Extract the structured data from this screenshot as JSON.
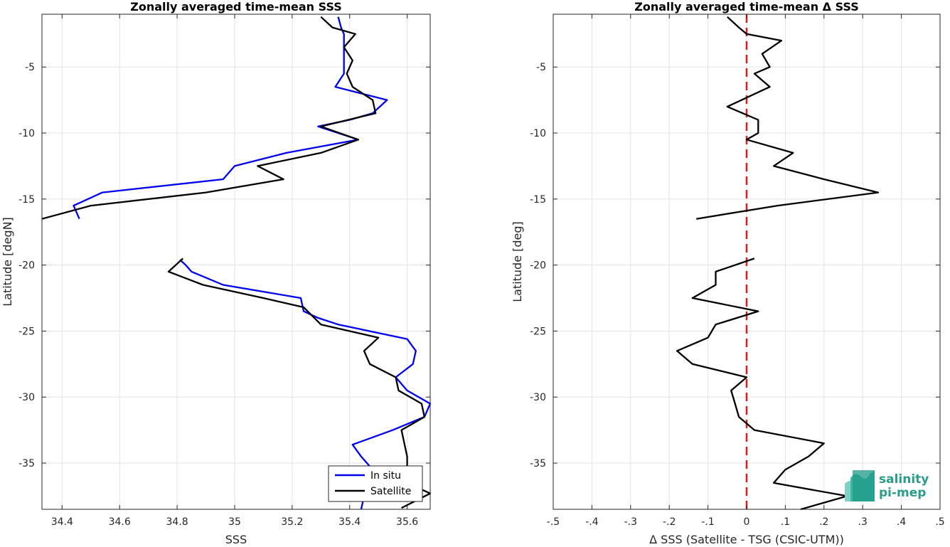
{
  "chart_data": [
    {
      "type": "line",
      "title": "Zonally averaged time-mean SSS",
      "xlabel": "SSS",
      "ylabel": "Latitude [degN]",
      "xlim": [
        34.33,
        35.68
      ],
      "ylim": [
        -38.5,
        -1
      ],
      "xticks": [
        34.4,
        34.6,
        34.8,
        35,
        35.2,
        35.4,
        35.6
      ],
      "yticks": [
        -35,
        -30,
        -25,
        -20,
        -15,
        -10,
        -5
      ],
      "grid": true,
      "legend": "bottom-right",
      "series": [
        {
          "name": "In situ",
          "color": "#0000ee",
          "segments": [
            [
              [
                35.36,
                -1.2
              ],
              [
                35.37,
                -2
              ],
              [
                35.38,
                -2.5
              ],
              [
                35.38,
                -3.5
              ],
              [
                35.38,
                -4.5
              ],
              [
                35.38,
                -5.5
              ],
              [
                35.35,
                -6.5
              ],
              [
                35.53,
                -7.5
              ],
              [
                35.48,
                -8.5
              ],
              [
                35.4,
                -9
              ],
              [
                35.29,
                -9.5
              ],
              [
                35.43,
                -10.5
              ],
              [
                35.18,
                -11.5
              ],
              [
                35.0,
                -12.5
              ],
              [
                34.96,
                -13.5
              ],
              [
                34.54,
                -14.5
              ],
              [
                34.44,
                -15.5
              ],
              [
                34.46,
                -16.5
              ]
            ],
            [
              [
                34.81,
                -19.6
              ],
              [
                34.83,
                -20
              ],
              [
                34.85,
                -20.5
              ],
              [
                34.96,
                -21.5
              ],
              [
                35.23,
                -22.5
              ],
              [
                35.24,
                -23.5
              ],
              [
                35.29,
                -24
              ],
              [
                35.36,
                -24.5
              ],
              [
                35.6,
                -25.6
              ],
              [
                35.63,
                -26.5
              ],
              [
                35.62,
                -27.5
              ],
              [
                35.56,
                -28.5
              ],
              [
                35.6,
                -29.5
              ],
              [
                35.68,
                -30.5
              ],
              [
                35.66,
                -31.5
              ],
              [
                35.55,
                -32.5
              ],
              [
                35.41,
                -33.6
              ],
              [
                35.44,
                -34.5
              ],
              [
                35.48,
                -35.5
              ],
              [
                35.46,
                -36.5
              ],
              [
                35.45,
                -37.5
              ],
              [
                35.44,
                -38.5
              ]
            ]
          ]
        },
        {
          "name": "Satellite",
          "color": "#000000",
          "segments": [
            [
              [
                35.3,
                -1.2
              ],
              [
                35.34,
                -2
              ],
              [
                35.42,
                -2.5
              ],
              [
                35.38,
                -3.5
              ],
              [
                35.41,
                -4.5
              ],
              [
                35.39,
                -5.5
              ],
              [
                35.41,
                -6.5
              ],
              [
                35.48,
                -7.5
              ],
              [
                35.49,
                -8.5
              ],
              [
                35.3,
                -9.5
              ],
              [
                35.43,
                -10.5
              ],
              [
                35.3,
                -11.5
              ],
              [
                35.08,
                -12.5
              ],
              [
                35.17,
                -13.5
              ],
              [
                34.9,
                -14.5
              ],
              [
                34.5,
                -15.5
              ],
              [
                34.33,
                -16.5
              ]
            ],
            [
              [
                34.82,
                -19.5
              ],
              [
                34.77,
                -20.5
              ],
              [
                34.89,
                -21.5
              ],
              [
                35.1,
                -22.5
              ],
              [
                35.24,
                -23.2
              ],
              [
                35.3,
                -24.5
              ],
              [
                35.5,
                -25.5
              ],
              [
                35.45,
                -26.5
              ],
              [
                35.47,
                -27.5
              ],
              [
                35.56,
                -28.5
              ],
              [
                35.57,
                -29.5
              ],
              [
                35.65,
                -30.5
              ],
              [
                35.66,
                -31.5
              ],
              [
                35.58,
                -32.5
              ],
              [
                35.59,
                -33.5
              ],
              [
                35.6,
                -34.5
              ],
              [
                35.6,
                -35.5
              ],
              [
                35.6,
                -36.5
              ],
              [
                35.68,
                -37.3
              ],
              [
                35.58,
                -38.4
              ]
            ]
          ]
        }
      ]
    },
    {
      "type": "line",
      "title": "Zonally averaged time-mean Δ SSS",
      "xlabel": "Δ SSS (Satellite - TSG (CSIC-UTM))",
      "ylabel": "Latitude [deg]",
      "xlim": [
        -0.5,
        0.5
      ],
      "ylim": [
        -38.5,
        -1
      ],
      "xticks": [
        -0.5,
        -0.4,
        -0.3,
        -0.2,
        -0.1,
        0,
        0.1,
        0.2,
        0.3,
        0.4,
        0.5
      ],
      "yticks": [
        -35,
        -30,
        -25,
        -20,
        -15,
        -10,
        -5
      ],
      "grid": true,
      "reference_line": {
        "x": 0,
        "color": "#e8191a",
        "style": "dashed"
      },
      "series": [
        {
          "color": "#000000",
          "segments": [
            [
              [
                -0.05,
                -1.2
              ],
              [
                -0.02,
                -2
              ],
              [
                0.0,
                -2.5
              ],
              [
                0.09,
                -3
              ],
              [
                0.04,
                -4
              ],
              [
                0.06,
                -5
              ],
              [
                0.02,
                -5.5
              ],
              [
                0.06,
                -6.5
              ],
              [
                -0.05,
                -8
              ],
              [
                0.03,
                -9
              ],
              [
                0.03,
                -10
              ],
              [
                0.0,
                -10.5
              ],
              [
                0.12,
                -11.5
              ],
              [
                0.07,
                -12.5
              ],
              [
                0.2,
                -13.5
              ],
              [
                0.34,
                -14.5
              ],
              [
                0.08,
                -15.5
              ],
              [
                -0.13,
                -16.5
              ]
            ],
            [
              [
                0.02,
                -19.5
              ],
              [
                -0.08,
                -20.5
              ],
              [
                -0.08,
                -21.5
              ],
              [
                -0.14,
                -22.5
              ],
              [
                0.03,
                -23.5
              ],
              [
                -0.08,
                -24.5
              ],
              [
                -0.1,
                -25.5
              ],
              [
                -0.18,
                -26.5
              ],
              [
                -0.14,
                -27.5
              ],
              [
                0.0,
                -28.5
              ],
              [
                -0.04,
                -29.5
              ],
              [
                -0.03,
                -30.5
              ],
              [
                -0.02,
                -31.5
              ],
              [
                0.02,
                -32.5
              ],
              [
                0.2,
                -33.5
              ],
              [
                0.16,
                -34.5
              ],
              [
                0.1,
                -35.5
              ],
              [
                0.07,
                -36.5
              ],
              [
                0.26,
                -37.5
              ],
              [
                0.14,
                -38.5
              ]
            ]
          ]
        }
      ]
    }
  ],
  "logo": {
    "line1": "salinity",
    "line2": "pi-mep"
  }
}
